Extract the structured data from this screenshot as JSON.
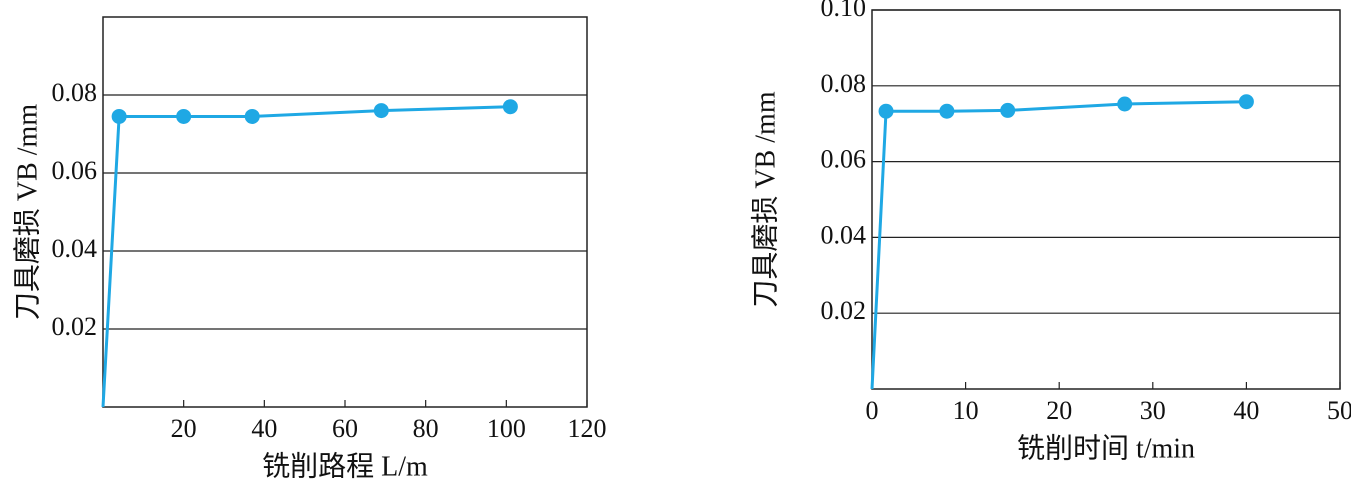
{
  "chart_data": [
    {
      "type": "line",
      "xlabel": "铣削路程 L/m",
      "ylabel": "刀具磨损 VB /mm",
      "x": [
        0,
        4,
        20,
        37,
        69,
        101
      ],
      "series": [
        {
          "color": "#1fa8e4",
          "values": [
            0,
            0.0745,
            0.0745,
            0.0745,
            0.076,
            0.077
          ]
        }
      ],
      "xlim": [
        0,
        120
      ],
      "ylim": [
        0,
        0.1
      ],
      "xticks": [
        20,
        40,
        60,
        80,
        100,
        120
      ],
      "yticks": [
        0.02,
        0.04,
        0.06,
        0.08
      ],
      "grid": true
    },
    {
      "type": "line",
      "xlabel": "铣削时间 t/min",
      "ylabel": "刀具磨损 VB /mm",
      "x": [
        0,
        1.5,
        8,
        14.5,
        27,
        40
      ],
      "series": [
        {
          "color": "#1fa8e4",
          "values": [
            0,
            0.0733,
            0.0733,
            0.0735,
            0.0752,
            0.0758
          ]
        }
      ],
      "xlim": [
        0,
        50
      ],
      "ylim": [
        0,
        0.1
      ],
      "xticks": [
        0,
        10,
        20,
        30,
        40,
        50
      ],
      "yticks": [
        0.02,
        0.04,
        0.06,
        {
          "value": 0.1,
          "label": "0.10"
        },
        0.08
      ],
      "grid": true
    }
  ]
}
